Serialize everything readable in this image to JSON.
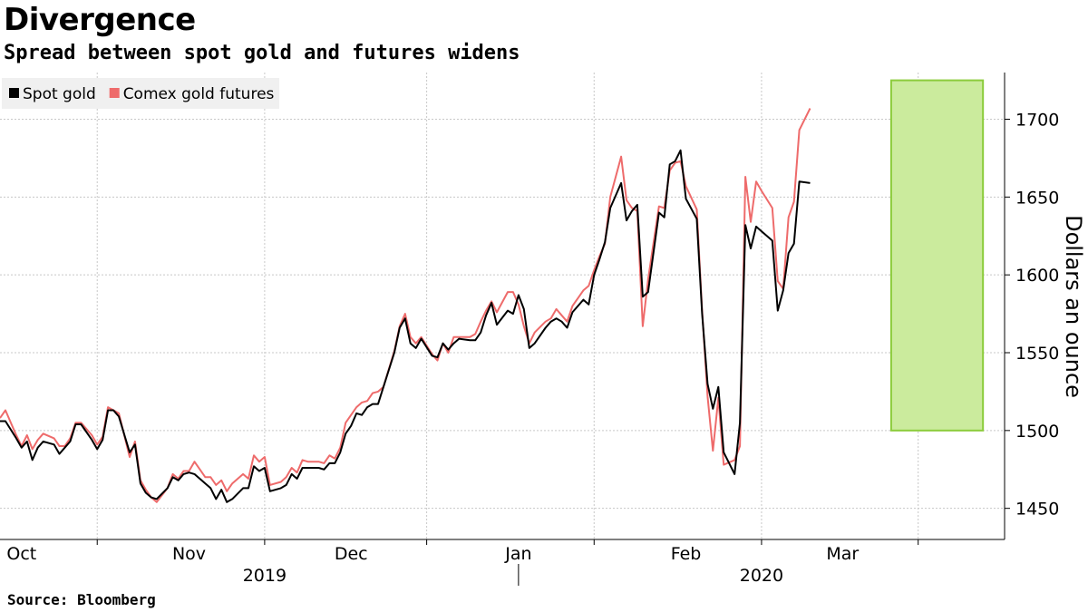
{
  "header": {
    "title": "Divergence",
    "subtitle": "Spread between spot gold and futures widens"
  },
  "footer": {
    "source": "Source: Bloomberg"
  },
  "chart_data": {
    "type": "line",
    "title": "Divergence",
    "subtitle": "Spread between spot gold and futures widens",
    "ylabel": "Dollars an ounce",
    "xlabel": "",
    "ylim": [
      1430,
      1730
    ],
    "y_ticks": [
      1450,
      1500,
      1550,
      1600,
      1650,
      1700
    ],
    "y_tick_labels": [
      "1450",
      "1500",
      "1550",
      "1600",
      "1650",
      "1700"
    ],
    "x_range": [
      "2019-09-27",
      "2020-03-31"
    ],
    "x_month_ticks": [
      {
        "label": "Oct",
        "date": "2019-10-01"
      },
      {
        "label": "Nov",
        "date": "2019-11-01"
      },
      {
        "label": "Dec",
        "date": "2019-12-01"
      },
      {
        "label": "Jan",
        "date": "2020-01-01"
      },
      {
        "label": "Feb",
        "date": "2020-02-01"
      },
      {
        "label": "Mar",
        "date": "2020-03-01"
      }
    ],
    "x_month_boundaries": [
      "2019-10-15",
      "2019-11-15",
      "2019-12-15",
      "2020-01-15",
      "2020-02-15",
      "2020-03-15"
    ],
    "x_year_labels": [
      {
        "label": "2019",
        "date": "2019-11-15"
      },
      {
        "label": "2020",
        "date": "2020-02-15"
      }
    ],
    "year_divider": "2020-01-01",
    "grid": true,
    "legend_position": "top-left",
    "highlight": {
      "x0": "2020-03-10",
      "x1": "2020-03-27",
      "y0": 1500,
      "y1": 1725,
      "fill": "#cbeb9d",
      "stroke": "#8ccc3c"
    },
    "series": [
      {
        "name": "Spot gold",
        "color": "#000000",
        "points": [
          [
            "2019-09-27",
            1506
          ],
          [
            "2019-09-28",
            1506
          ],
          [
            "2019-09-30",
            1495
          ],
          [
            "2019-10-01",
            1489
          ],
          [
            "2019-10-02",
            1493
          ],
          [
            "2019-10-03",
            1481
          ],
          [
            "2019-10-04",
            1489
          ],
          [
            "2019-10-05",
            1493
          ],
          [
            "2019-10-07",
            1491
          ],
          [
            "2019-10-08",
            1485
          ],
          [
            "2019-10-09",
            1489
          ],
          [
            "2019-10-10",
            1493
          ],
          [
            "2019-10-11",
            1504
          ],
          [
            "2019-10-12",
            1504
          ],
          [
            "2019-10-14",
            1494
          ],
          [
            "2019-10-15",
            1488
          ],
          [
            "2019-10-16",
            1494
          ],
          [
            "2019-10-17",
            1513
          ],
          [
            "2019-10-18",
            1513
          ],
          [
            "2019-10-19",
            1509
          ],
          [
            "2019-10-21",
            1486
          ],
          [
            "2019-10-22",
            1491
          ],
          [
            "2019-10-23",
            1466
          ],
          [
            "2019-10-24",
            1460
          ],
          [
            "2019-10-25",
            1457
          ],
          [
            "2019-10-26",
            1456
          ],
          [
            "2019-10-28",
            1463
          ],
          [
            "2019-10-29",
            1470
          ],
          [
            "2019-10-30",
            1468
          ],
          [
            "2019-10-31",
            1472
          ],
          [
            "2019-11-01",
            1473
          ],
          [
            "2019-11-02",
            1472
          ],
          [
            "2019-11-04",
            1466
          ],
          [
            "2019-11-05",
            1463
          ],
          [
            "2019-11-06",
            1456
          ],
          [
            "2019-11-07",
            1462
          ],
          [
            "2019-11-08",
            1454
          ],
          [
            "2019-11-09",
            1456
          ],
          [
            "2019-11-11",
            1463
          ],
          [
            "2019-11-12",
            1463
          ],
          [
            "2019-11-13",
            1477
          ],
          [
            "2019-11-14",
            1474
          ],
          [
            "2019-11-15",
            1476
          ],
          [
            "2019-11-16",
            1461
          ],
          [
            "2019-11-18",
            1463
          ],
          [
            "2019-11-19",
            1465
          ],
          [
            "2019-11-20",
            1472
          ],
          [
            "2019-11-21",
            1469
          ],
          [
            "2019-11-22",
            1476
          ],
          [
            "2019-11-23",
            1476
          ],
          [
            "2019-11-25",
            1476
          ],
          [
            "2019-11-26",
            1475
          ],
          [
            "2019-11-27",
            1479
          ],
          [
            "2019-11-28",
            1479
          ],
          [
            "2019-11-29",
            1486
          ],
          [
            "2019-11-30",
            1498
          ],
          [
            "2019-12-01",
            1503
          ],
          [
            "2019-12-02",
            1511
          ],
          [
            "2019-12-03",
            1510
          ],
          [
            "2019-12-04",
            1515
          ],
          [
            "2019-12-05",
            1517
          ],
          [
            "2019-12-06",
            1517
          ],
          [
            "2019-12-07",
            1528
          ],
          [
            "2019-12-09",
            1550
          ],
          [
            "2019-12-10",
            1566
          ],
          [
            "2019-12-11",
            1572
          ],
          [
            "2019-12-12",
            1556
          ],
          [
            "2019-12-13",
            1553
          ],
          [
            "2019-12-14",
            1559
          ],
          [
            "2019-12-16",
            1548
          ],
          [
            "2019-12-17",
            1547
          ],
          [
            "2019-12-18",
            1556
          ],
          [
            "2019-12-19",
            1552
          ],
          [
            "2019-12-20",
            1556
          ],
          [
            "2019-12-21",
            1559
          ],
          [
            "2019-12-23",
            1558
          ],
          [
            "2019-12-24",
            1558
          ],
          [
            "2019-12-25",
            1563
          ],
          [
            "2019-12-26",
            1574
          ],
          [
            "2019-12-27",
            1582
          ],
          [
            "2019-12-28",
            1568
          ],
          [
            "2019-12-30",
            1577
          ],
          [
            "2019-12-31",
            1575
          ],
          [
            "2020-01-01",
            1587
          ],
          [
            "2020-01-02",
            1578
          ],
          [
            "2020-01-03",
            1553
          ],
          [
            "2020-01-04",
            1556
          ],
          [
            "2020-01-06",
            1566
          ],
          [
            "2020-01-07",
            1570
          ],
          [
            "2020-01-08",
            1572
          ],
          [
            "2020-01-09",
            1570
          ],
          [
            "2020-01-10",
            1566
          ],
          [
            "2020-01-11",
            1576
          ],
          [
            "2020-01-13",
            1584
          ],
          [
            "2020-01-14",
            1581
          ],
          [
            "2020-01-15",
            1600
          ],
          [
            "2020-01-16",
            1610
          ],
          [
            "2020-01-17",
            1621
          ],
          [
            "2020-01-18",
            1643
          ],
          [
            "2020-01-20",
            1659
          ],
          [
            "2020-01-21",
            1635
          ],
          [
            "2020-01-22",
            1641
          ],
          [
            "2020-01-23",
            1645
          ],
          [
            "2020-01-24",
            1586
          ],
          [
            "2020-01-25",
            1589
          ],
          [
            "2020-01-27",
            1640
          ],
          [
            "2020-01-28",
            1637
          ],
          [
            "2020-01-29",
            1671
          ],
          [
            "2020-01-30",
            1673
          ],
          [
            "2020-01-31",
            1680
          ],
          [
            "2020-02-01",
            1649
          ],
          [
            "2020-02-03",
            1636
          ],
          [
            "2020-02-04",
            1575
          ],
          [
            "2020-02-05",
            1530
          ],
          [
            "2020-02-06",
            1514
          ],
          [
            "2020-02-07",
            1528
          ],
          [
            "2020-02-08",
            1486
          ],
          [
            "2020-02-10",
            1472
          ],
          [
            "2020-02-11",
            1505
          ],
          [
            "2020-02-12",
            1632
          ],
          [
            "2020-02-13",
            1617
          ],
          [
            "2020-02-14",
            1631
          ],
          [
            "2020-02-15",
            1628
          ],
          [
            "2020-02-17",
            1622
          ],
          [
            "2020-02-18",
            1577
          ],
          [
            "2020-02-19",
            1590
          ],
          [
            "2020-02-20",
            1614
          ],
          [
            "2020-02-21",
            1620
          ],
          [
            "2020-02-22",
            1660
          ],
          [
            "2020-02-24",
            1659
          ]
        ]
      },
      {
        "name": "Comex gold futures",
        "color": "#ee6b6b",
        "points": [
          [
            "2019-09-27",
            1508
          ],
          [
            "2019-09-28",
            1513
          ],
          [
            "2019-09-30",
            1497
          ],
          [
            "2019-10-01",
            1490
          ],
          [
            "2019-10-02",
            1497
          ],
          [
            "2019-10-03",
            1488
          ],
          [
            "2019-10-04",
            1494
          ],
          [
            "2019-10-05",
            1498
          ],
          [
            "2019-10-07",
            1495
          ],
          [
            "2019-10-08",
            1490
          ],
          [
            "2019-10-09",
            1490
          ],
          [
            "2019-10-10",
            1495
          ],
          [
            "2019-10-11",
            1505
          ],
          [
            "2019-10-12",
            1505
          ],
          [
            "2019-10-14",
            1497
          ],
          [
            "2019-10-15",
            1491
          ],
          [
            "2019-10-16",
            1496
          ],
          [
            "2019-10-17",
            1515
          ],
          [
            "2019-10-18",
            1513
          ],
          [
            "2019-10-19",
            1511
          ],
          [
            "2019-10-21",
            1483
          ],
          [
            "2019-10-22",
            1493
          ],
          [
            "2019-10-23",
            1468
          ],
          [
            "2019-10-24",
            1462
          ],
          [
            "2019-10-25",
            1457
          ],
          [
            "2019-10-26",
            1454
          ],
          [
            "2019-10-28",
            1463
          ],
          [
            "2019-10-29",
            1472
          ],
          [
            "2019-10-30",
            1469
          ],
          [
            "2019-10-31",
            1474
          ],
          [
            "2019-11-01",
            1474
          ],
          [
            "2019-11-02",
            1480
          ],
          [
            "2019-11-04",
            1470
          ],
          [
            "2019-11-05",
            1470
          ],
          [
            "2019-11-06",
            1465
          ],
          [
            "2019-11-07",
            1468
          ],
          [
            "2019-11-08",
            1461
          ],
          [
            "2019-11-09",
            1466
          ],
          [
            "2019-11-11",
            1472
          ],
          [
            "2019-11-12",
            1469
          ],
          [
            "2019-11-13",
            1484
          ],
          [
            "2019-11-14",
            1480
          ],
          [
            "2019-11-15",
            1483
          ],
          [
            "2019-11-16",
            1465
          ],
          [
            "2019-11-18",
            1467
          ],
          [
            "2019-11-19",
            1470
          ],
          [
            "2019-11-20",
            1476
          ],
          [
            "2019-11-21",
            1473
          ],
          [
            "2019-11-22",
            1481
          ],
          [
            "2019-11-23",
            1480
          ],
          [
            "2019-11-25",
            1480
          ],
          [
            "2019-11-26",
            1479
          ],
          [
            "2019-11-27",
            1484
          ],
          [
            "2019-11-28",
            1482
          ],
          [
            "2019-11-29",
            1489
          ],
          [
            "2019-11-30",
            1505
          ],
          [
            "2019-12-01",
            1510
          ],
          [
            "2019-12-02",
            1515
          ],
          [
            "2019-12-03",
            1518
          ],
          [
            "2019-12-04",
            1519
          ],
          [
            "2019-12-05",
            1524
          ],
          [
            "2019-12-06",
            1525
          ],
          [
            "2019-12-07",
            1528
          ],
          [
            "2019-12-09",
            1551
          ],
          [
            "2019-12-10",
            1567
          ],
          [
            "2019-12-11",
            1575
          ],
          [
            "2019-12-12",
            1560
          ],
          [
            "2019-12-13",
            1556
          ],
          [
            "2019-12-14",
            1560
          ],
          [
            "2019-12-16",
            1549
          ],
          [
            "2019-12-17",
            1545
          ],
          [
            "2019-12-18",
            1556
          ],
          [
            "2019-12-19",
            1550
          ],
          [
            "2019-12-20",
            1560
          ],
          [
            "2019-12-21",
            1560
          ],
          [
            "2019-12-23",
            1560
          ],
          [
            "2019-12-24",
            1562
          ],
          [
            "2019-12-25",
            1570
          ],
          [
            "2019-12-26",
            1577
          ],
          [
            "2019-12-27",
            1583
          ],
          [
            "2019-12-28",
            1576
          ],
          [
            "2019-12-30",
            1589
          ],
          [
            "2019-12-31",
            1589
          ],
          [
            "2020-01-01",
            1581
          ],
          [
            "2020-01-02",
            1567
          ],
          [
            "2020-01-03",
            1556
          ],
          [
            "2020-01-04",
            1563
          ],
          [
            "2020-01-06",
            1570
          ],
          [
            "2020-01-07",
            1572
          ],
          [
            "2020-01-08",
            1578
          ],
          [
            "2020-01-09",
            1574
          ],
          [
            "2020-01-10",
            1570
          ],
          [
            "2020-01-11",
            1580
          ],
          [
            "2020-01-13",
            1590
          ],
          [
            "2020-01-14",
            1593
          ],
          [
            "2020-01-15",
            1603
          ],
          [
            "2020-01-16",
            1612
          ],
          [
            "2020-01-17",
            1620
          ],
          [
            "2020-01-18",
            1650
          ],
          [
            "2020-01-20",
            1676
          ],
          [
            "2020-01-21",
            1648
          ],
          [
            "2020-01-22",
            1643
          ],
          [
            "2020-01-23",
            1641
          ],
          [
            "2020-01-24",
            1567
          ],
          [
            "2020-01-25",
            1597
          ],
          [
            "2020-01-27",
            1644
          ],
          [
            "2020-01-28",
            1643
          ],
          [
            "2020-01-29",
            1667
          ],
          [
            "2020-01-30",
            1672
          ],
          [
            "2020-01-31",
            1673
          ],
          [
            "2020-02-01",
            1657
          ],
          [
            "2020-02-03",
            1642
          ],
          [
            "2020-02-04",
            1577
          ],
          [
            "2020-02-05",
            1522
          ],
          [
            "2020-02-06",
            1487
          ],
          [
            "2020-02-07",
            1521
          ],
          [
            "2020-02-08",
            1478
          ],
          [
            "2020-02-10",
            1481
          ],
          [
            "2020-02-11",
            1490
          ],
          [
            "2020-02-12",
            1663
          ],
          [
            "2020-02-13",
            1634
          ],
          [
            "2020-02-14",
            1660
          ],
          [
            "2020-02-15",
            1654
          ],
          [
            "2020-02-17",
            1643
          ],
          [
            "2020-02-18",
            1596
          ],
          [
            "2020-02-19",
            1591
          ],
          [
            "2020-02-20",
            1637
          ],
          [
            "2020-02-21",
            1647
          ],
          [
            "2020-02-22",
            1693
          ],
          [
            "2020-02-24",
            1707
          ]
        ]
      }
    ]
  }
}
